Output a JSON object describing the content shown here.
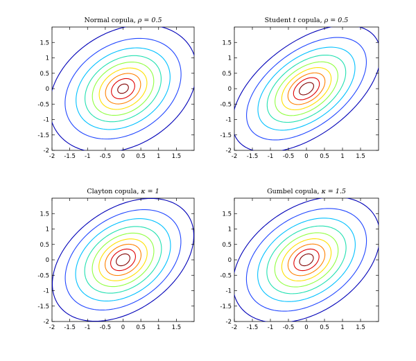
{
  "chart_data": [
    {
      "type": "contour",
      "title_prefix": "Normal copula, ",
      "title_param": "ρ = 0.5",
      "xlim": [
        -2,
        2
      ],
      "ylim": [
        -2,
        2
      ],
      "xticks": [
        -2,
        -1.5,
        -1,
        -0.5,
        0,
        0.5,
        1,
        1.5
      ],
      "yticks": [
        -2,
        -1.5,
        -1,
        -0.5,
        0,
        0.5,
        1,
        1.5
      ],
      "contours": [
        {
          "rx": 2.35,
          "ry": 1.75,
          "theta": 45,
          "color": "#0000b8"
        },
        {
          "rx": 1.85,
          "ry": 1.38,
          "theta": 45,
          "color": "#2046ff"
        },
        {
          "rx": 1.5,
          "ry": 1.12,
          "theta": 45,
          "color": "#00c0ff"
        },
        {
          "rx": 1.22,
          "ry": 0.9,
          "theta": 45,
          "color": "#20e0b0"
        },
        {
          "rx": 0.98,
          "ry": 0.73,
          "theta": 45,
          "color": "#90ff40"
        },
        {
          "rx": 0.76,
          "ry": 0.57,
          "theta": 45,
          "color": "#ffe000"
        },
        {
          "rx": 0.56,
          "ry": 0.42,
          "theta": 45,
          "color": "#ff8000"
        },
        {
          "rx": 0.37,
          "ry": 0.28,
          "theta": 45,
          "color": "#e00000"
        },
        {
          "rx": 0.17,
          "ry": 0.13,
          "theta": 45,
          "color": "#800000"
        }
      ]
    },
    {
      "type": "contour",
      "title_prefix": "Student ",
      "title_italic": "t",
      "title_middle": " copula, ",
      "title_param": "ρ = 0.5",
      "xlim": [
        -2,
        2
      ],
      "ylim": [
        -2,
        2
      ],
      "xticks": [
        -2,
        -1.5,
        -1,
        -0.5,
        0,
        0.5,
        1,
        1.5
      ],
      "yticks": [
        -2,
        -1.5,
        -1,
        -0.5,
        0,
        0.5,
        1,
        1.5
      ],
      "contours": [
        {
          "rx": 2.55,
          "ry": 1.4,
          "theta": 45,
          "color": "#0000b8"
        },
        {
          "rx": 2.05,
          "ry": 1.15,
          "theta": 45,
          "color": "#2046ff"
        },
        {
          "rx": 1.65,
          "ry": 0.95,
          "theta": 45,
          "color": "#00c0ff"
        },
        {
          "rx": 1.33,
          "ry": 0.78,
          "theta": 45,
          "color": "#20e0b0"
        },
        {
          "rx": 1.06,
          "ry": 0.63,
          "theta": 45,
          "color": "#90ff40"
        },
        {
          "rx": 0.83,
          "ry": 0.5,
          "theta": 45,
          "color": "#ffe000"
        },
        {
          "rx": 0.62,
          "ry": 0.38,
          "theta": 45,
          "color": "#ff8000"
        },
        {
          "rx": 0.43,
          "ry": 0.27,
          "theta": 45,
          "color": "#e00000"
        },
        {
          "rx": 0.24,
          "ry": 0.15,
          "theta": 45,
          "color": "#800000"
        }
      ]
    },
    {
      "type": "contour",
      "title_prefix": "Clayton copula, ",
      "title_param": "κ = 1",
      "xlim": [
        -2,
        2
      ],
      "ylim": [
        -2,
        2
      ],
      "xticks": [
        -2,
        -1.5,
        -1,
        -0.5,
        0,
        0.5,
        1,
        1.5
      ],
      "yticks": [
        -2,
        -1.5,
        -1,
        -0.5,
        0,
        0.5,
        1,
        1.5
      ],
      "contours": [
        {
          "rx": 2.35,
          "ry": 1.55,
          "theta": 45,
          "color": "#0000b8"
        },
        {
          "rx": 1.9,
          "ry": 1.3,
          "theta": 45,
          "color": "#2046ff"
        },
        {
          "rx": 1.55,
          "ry": 1.08,
          "theta": 45,
          "color": "#00c0ff"
        },
        {
          "rx": 1.25,
          "ry": 0.88,
          "theta": 45,
          "color": "#20e0b0"
        },
        {
          "rx": 1.0,
          "ry": 0.71,
          "theta": 45,
          "color": "#90ff40"
        },
        {
          "rx": 0.78,
          "ry": 0.56,
          "theta": 45,
          "color": "#ffe000"
        },
        {
          "rx": 0.58,
          "ry": 0.42,
          "theta": 45,
          "color": "#ff8000"
        },
        {
          "rx": 0.4,
          "ry": 0.29,
          "theta": 45,
          "color": "#e00000"
        },
        {
          "rx": 0.22,
          "ry": 0.16,
          "theta": 45,
          "color": "#800000"
        }
      ]
    },
    {
      "type": "contour",
      "title_prefix": "Gumbel copula, ",
      "title_param": "κ = 1.5",
      "xlim": [
        -2,
        2
      ],
      "ylim": [
        -2,
        2
      ],
      "xticks": [
        -2,
        -1.5,
        -1,
        -0.5,
        0,
        0.5,
        1,
        1.5
      ],
      "yticks": [
        -2,
        -1.5,
        -1,
        -0.5,
        0,
        0.5,
        1,
        1.5
      ],
      "contours": [
        {
          "rx": 2.4,
          "ry": 1.6,
          "theta": 45,
          "color": "#0000b8"
        },
        {
          "rx": 1.95,
          "ry": 1.32,
          "theta": 45,
          "color": "#2046ff"
        },
        {
          "rx": 1.58,
          "ry": 1.08,
          "theta": 45,
          "color": "#00c0ff"
        },
        {
          "rx": 1.28,
          "ry": 0.88,
          "theta": 45,
          "color": "#20e0b0"
        },
        {
          "rx": 1.02,
          "ry": 0.71,
          "theta": 45,
          "color": "#90ff40"
        },
        {
          "rx": 0.79,
          "ry": 0.56,
          "theta": 45,
          "color": "#ffe000"
        },
        {
          "rx": 0.59,
          "ry": 0.42,
          "theta": 45,
          "color": "#ff8000"
        },
        {
          "rx": 0.4,
          "ry": 0.29,
          "theta": 45,
          "color": "#e00000"
        },
        {
          "rx": 0.22,
          "ry": 0.16,
          "theta": 45,
          "color": "#800000"
        }
      ]
    }
  ]
}
